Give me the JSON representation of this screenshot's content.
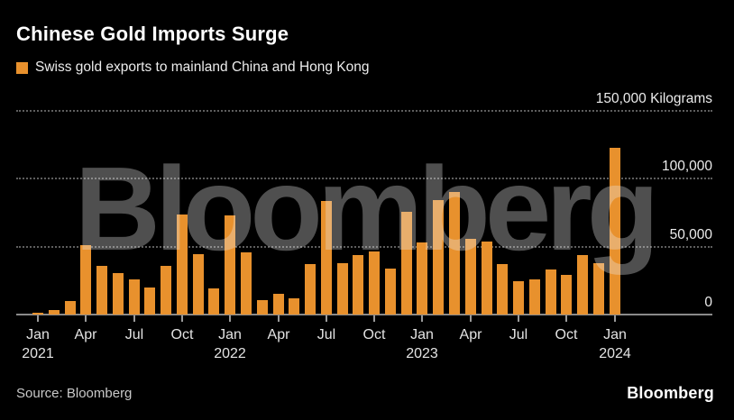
{
  "title": "Chinese Gold Imports Surge",
  "legend": {
    "label": "Swiss gold exports to mainland China and Hong Kong"
  },
  "watermark": "Bloomberg",
  "footer": {
    "source": "Source: Bloomberg",
    "logo": "Bloomberg"
  },
  "colors": {
    "background": "#000000",
    "bar": "#E8912D",
    "grid": "#5E5E5E",
    "axis_line": "#8A8A8A",
    "text": "#ECECEC",
    "title_text": "#FFFFFF"
  },
  "chart_data": {
    "type": "bar",
    "title": "Chinese Gold Imports Surge",
    "series_name": "Swiss gold exports to mainland China and Hong Kong",
    "ylabel": "Kilograms",
    "ylim": [
      0,
      150000
    ],
    "grid": "dotted-horizontal",
    "legend_position": "top-left",
    "yticks": [
      {
        "value": 150000,
        "label": "150,000 Kilograms"
      },
      {
        "value": 100000,
        "label": "100,000"
      },
      {
        "value": 50000,
        "label": "50,000"
      },
      {
        "value": 0,
        "label": "0"
      }
    ],
    "categories": [
      "Jan 2021",
      "Feb 2021",
      "Mar 2021",
      "Apr 2021",
      "May 2021",
      "Jun 2021",
      "Jul 2021",
      "Aug 2021",
      "Sep 2021",
      "Oct 2021",
      "Nov 2021",
      "Dec 2021",
      "Jan 2022",
      "Feb 2022",
      "Mar 2022",
      "Apr 2022",
      "May 2022",
      "Jun 2022",
      "Jul 2022",
      "Aug 2022",
      "Sep 2022",
      "Oct 2022",
      "Nov 2022",
      "Dec 2022",
      "Jan 2023",
      "Feb 2023",
      "Mar 2023",
      "Apr 2023",
      "May 2023",
      "Jun 2023",
      "Jul 2023",
      "Aug 2023",
      "Sep 2023",
      "Oct 2023",
      "Nov 2023",
      "Dec 2023",
      "Jan 2024"
    ],
    "values": [
      1000,
      3000,
      10000,
      51000,
      36000,
      30500,
      26000,
      20000,
      36000,
      73500,
      44500,
      19500,
      73000,
      46000,
      10500,
      15500,
      12000,
      37500,
      83500,
      38000,
      44000,
      46500,
      34000,
      75500,
      53000,
      84000,
      90500,
      55500,
      54000,
      37500,
      24500,
      26000,
      33000,
      29500,
      43500,
      38000,
      122500
    ],
    "xticks": [
      {
        "index": 0,
        "month": "Jan",
        "year": "2021"
      },
      {
        "index": 3,
        "month": "Apr"
      },
      {
        "index": 6,
        "month": "Jul"
      },
      {
        "index": 9,
        "month": "Oct"
      },
      {
        "index": 12,
        "month": "Jan",
        "year": "2022"
      },
      {
        "index": 15,
        "month": "Apr"
      },
      {
        "index": 18,
        "month": "Jul"
      },
      {
        "index": 21,
        "month": "Oct"
      },
      {
        "index": 24,
        "month": "Jan",
        "year": "2023"
      },
      {
        "index": 27,
        "month": "Apr"
      },
      {
        "index": 30,
        "month": "Jul"
      },
      {
        "index": 33,
        "month": "Oct"
      },
      {
        "index": 36,
        "month": "Jan",
        "year": "2024"
      }
    ]
  }
}
